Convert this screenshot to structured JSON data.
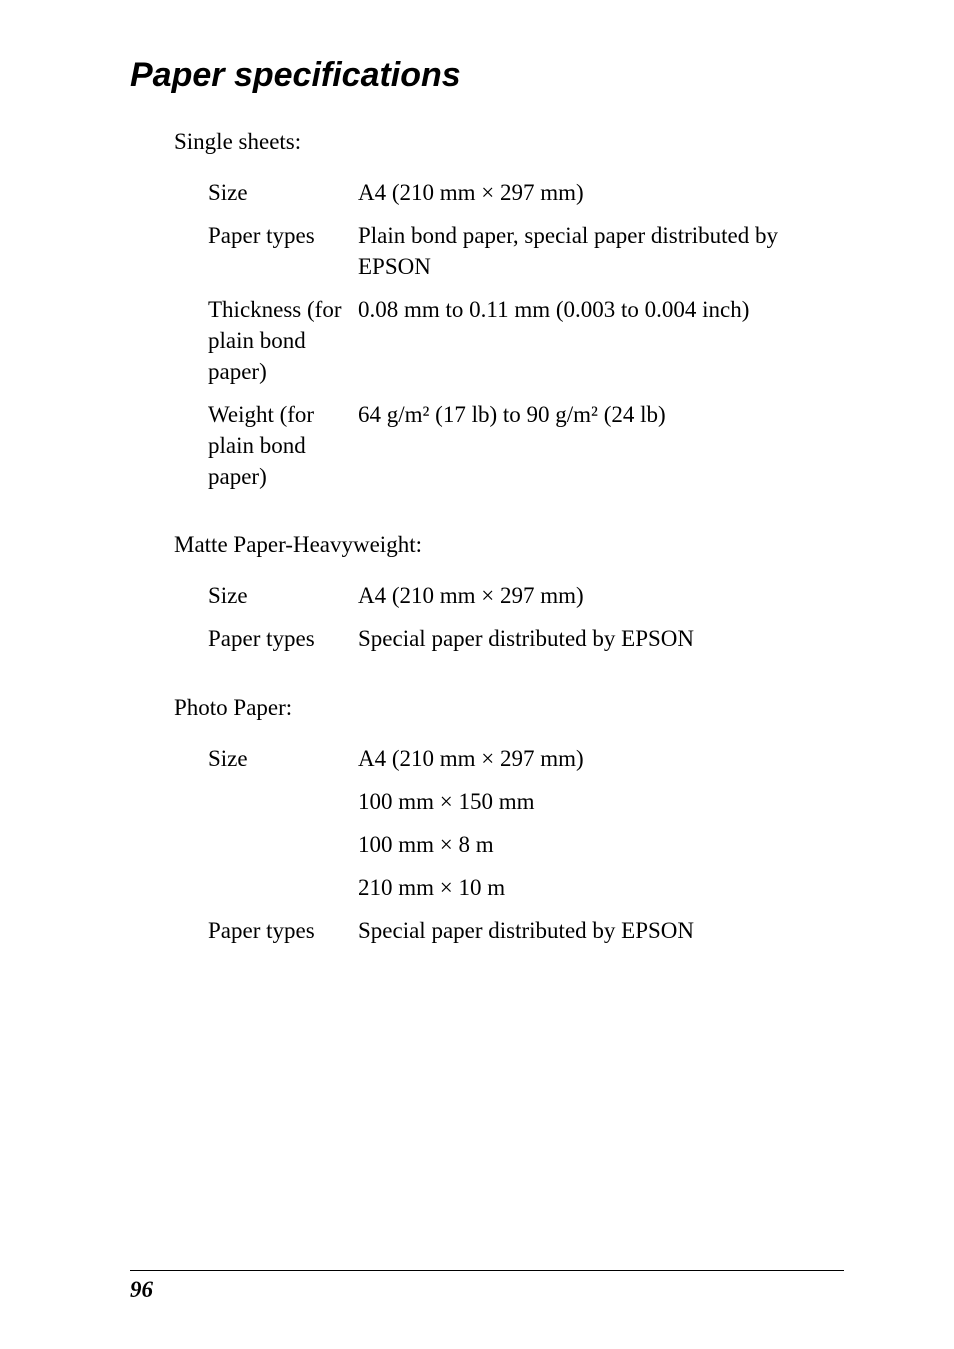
{
  "typography": {
    "title_font": "Arial Black, sans-serif",
    "title_fontsize_pt": 26,
    "title_style": "italic",
    "body_font": "Book Antiqua / Palatino, serif",
    "body_fontsize_pt": 17,
    "footer_pagenum_fontsize_pt": 17,
    "footer_rule_color": "#000000",
    "background_color": "#ffffff",
    "text_color": "#000000"
  },
  "title": "Paper specifications",
  "groups": [
    {
      "label": "Single sheets:",
      "rows": [
        {
          "key": "Size",
          "val": "A4 (210 mm × 297 mm)"
        },
        {
          "key": "Paper types",
          "val": "Plain bond paper, special paper distributed by EPSON"
        },
        {
          "key": "Thickness (for plain bond paper)",
          "val": "0.08 mm to 0.11 mm (0.003 to 0.004 inch)"
        },
        {
          "key": "Weight (for plain bond paper)",
          "val": "64 g/m² (17 lb) to 90 g/m² (24 lb)"
        }
      ]
    },
    {
      "label": "Matte Paper-Heavyweight:",
      "rows": [
        {
          "key": "Size",
          "val": "A4 (210 mm × 297 mm)"
        },
        {
          "key": "Paper types",
          "val": "Special paper distributed by EPSON"
        }
      ]
    },
    {
      "label": "Photo Paper:",
      "rows": [
        {
          "key": "Size",
          "val": "A4 (210 mm × 297 mm)"
        },
        {
          "key": "",
          "val": "100 mm × 150 mm"
        },
        {
          "key": "",
          "val": "100 mm × 8 m"
        },
        {
          "key": "",
          "val": "210 mm × 10 m"
        },
        {
          "key": "Paper types",
          "val": "Special paper distributed by EPSON"
        }
      ]
    }
  ],
  "page_number": "96"
}
